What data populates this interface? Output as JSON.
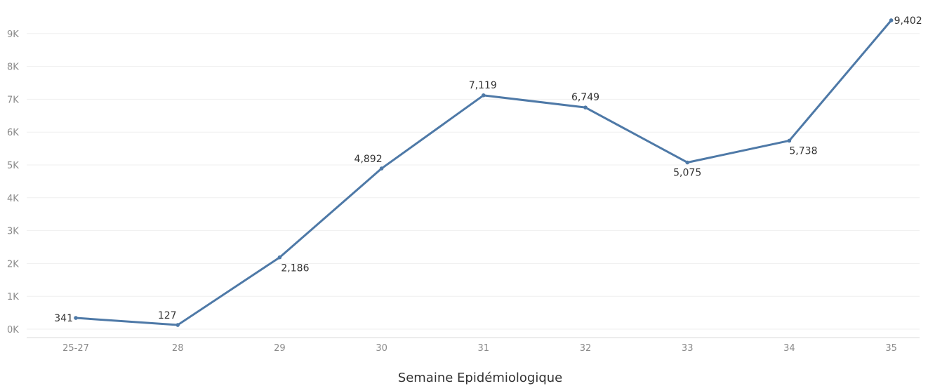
{
  "chart_data": {
    "type": "line",
    "title": "",
    "xlabel": "Semaine Epidémiologique",
    "ylabel": "",
    "categories": [
      "25-27",
      "28",
      "29",
      "30",
      "31",
      "32",
      "33",
      "34",
      "35"
    ],
    "series": [
      {
        "values": [
          341,
          127,
          2186,
          4892,
          7119,
          6749,
          5075,
          5738,
          9402
        ],
        "labels": [
          "341",
          "127",
          "2,186",
          "4,892",
          "7,119",
          "6,749",
          "5,075",
          "5,738",
          "9,402"
        ],
        "color": "#4e79a7"
      }
    ],
    "yticks": [
      0,
      1000,
      2000,
      3000,
      4000,
      5000,
      6000,
      7000,
      8000,
      9000
    ],
    "ytick_labels": [
      "0K",
      "1K",
      "2K",
      "3K",
      "4K",
      "5K",
      "6K",
      "7K",
      "8K",
      "9K"
    ],
    "ylim": [
      0,
      9500
    ],
    "grid": true,
    "legend": "none"
  }
}
